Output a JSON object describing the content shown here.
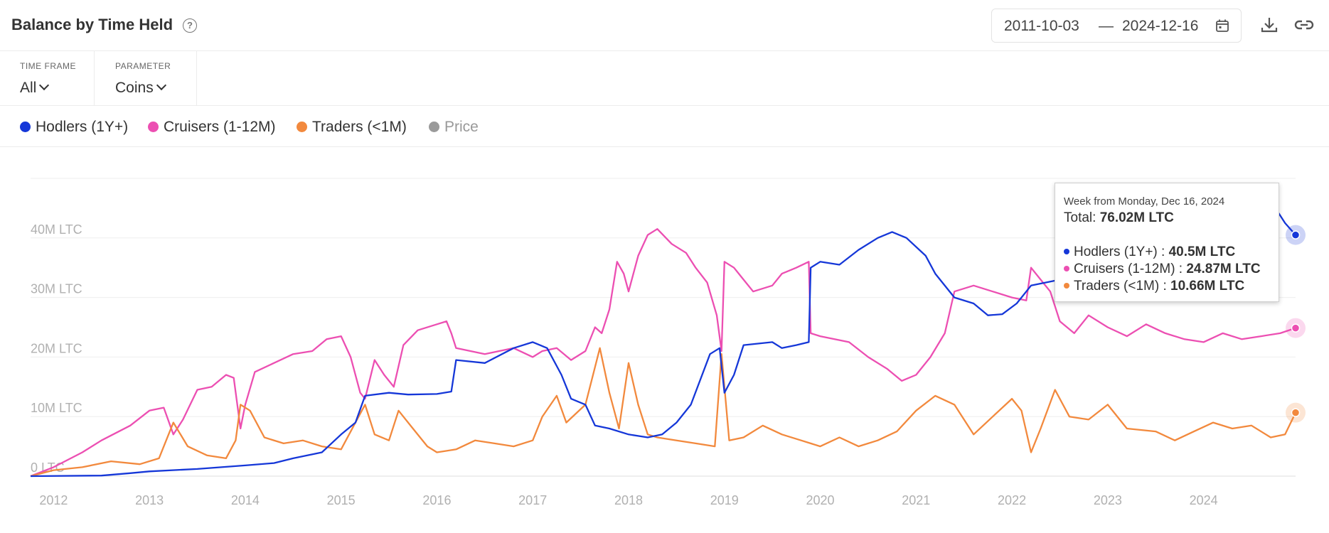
{
  "header": {
    "title": "Balance by Time Held",
    "help_icon": "question-circle-icon"
  },
  "date_range": {
    "start": "2011-10-03",
    "separator": "—",
    "end": "2024-12-16",
    "icon": "calendar-icon"
  },
  "actions": {
    "download_icon": "download-icon",
    "link_icon": "link-icon"
  },
  "controls": {
    "time_frame": {
      "label": "TIME FRAME",
      "value": "All"
    },
    "parameter": {
      "label": "PARAMETER",
      "value": "Coins"
    }
  },
  "legend": [
    {
      "label": "Hodlers (1Y+)",
      "color": "#1537d8",
      "active": true
    },
    {
      "label": "Cruisers (1-12M)",
      "color": "#ec4fb2",
      "active": true
    },
    {
      "label": "Traders (<1M)",
      "color": "#f2893d",
      "active": true
    },
    {
      "label": "Price",
      "color": "#9a9a9a",
      "active": false
    }
  ],
  "tooltip": {
    "week": "Week from Monday, Dec 16, 2024",
    "total_label": "Total: ",
    "total_value": "76.02M LTC",
    "rows": [
      {
        "label": "Hodlers (1Y+) : ",
        "value": "40.5M LTC",
        "color": "#1537d8"
      },
      {
        "label": "Cruisers (1-12M) : ",
        "value": "24.87M LTC",
        "color": "#ec4fb2"
      },
      {
        "label": "Traders (<1M) : ",
        "value": "10.66M LTC",
        "color": "#f2893d"
      }
    ]
  },
  "chart_data": {
    "type": "line",
    "x_unit": "year",
    "xlim": [
      2011.76,
      2024.96
    ],
    "ylim": [
      0,
      50
    ],
    "y_ticks": [
      0,
      10,
      20,
      30,
      40
    ],
    "y_tick_labels": [
      "0 LTC",
      "10M LTC",
      "20M LTC",
      "30M LTC",
      "40M LTC"
    ],
    "x_ticks": [
      2012,
      2013,
      2014,
      2015,
      2016,
      2017,
      2018,
      2019,
      2020,
      2021,
      2022,
      2023,
      2024
    ],
    "x_tick_labels": [
      "2012",
      "2013",
      "2014",
      "2015",
      "2016",
      "2017",
      "2018",
      "2019",
      "2020",
      "2021",
      "2022",
      "2023",
      "2024"
    ],
    "grid": true,
    "series": [
      {
        "name": "Hodlers (1Y+)",
        "color": "#1537d8",
        "points": [
          [
            2011.76,
            0
          ],
          [
            2012.5,
            0.1
          ],
          [
            2012.8,
            0.5
          ],
          [
            2013.0,
            0.8
          ],
          [
            2013.5,
            1.2
          ],
          [
            2014.0,
            1.8
          ],
          [
            2014.3,
            2.2
          ],
          [
            2014.5,
            3.0
          ],
          [
            2014.8,
            4.0
          ],
          [
            2015.0,
            7.0
          ],
          [
            2015.15,
            9.0
          ],
          [
            2015.25,
            13.5
          ],
          [
            2015.5,
            14.0
          ],
          [
            2015.7,
            13.7
          ],
          [
            2016.0,
            13.8
          ],
          [
            2016.15,
            14.2
          ],
          [
            2016.2,
            19.5
          ],
          [
            2016.5,
            19.0
          ],
          [
            2016.8,
            21.5
          ],
          [
            2017.0,
            22.5
          ],
          [
            2017.15,
            21.5
          ],
          [
            2017.3,
            17.0
          ],
          [
            2017.4,
            13.0
          ],
          [
            2017.55,
            12.0
          ],
          [
            2017.65,
            8.5
          ],
          [
            2017.8,
            8.0
          ],
          [
            2018.0,
            7.0
          ],
          [
            2018.2,
            6.5
          ],
          [
            2018.35,
            7.0
          ],
          [
            2018.5,
            9.0
          ],
          [
            2018.65,
            12.0
          ],
          [
            2018.85,
            20.5
          ],
          [
            2018.95,
            21.5
          ],
          [
            2019.0,
            14.0
          ],
          [
            2019.1,
            17.0
          ],
          [
            2019.2,
            22.0
          ],
          [
            2019.5,
            22.5
          ],
          [
            2019.6,
            21.5
          ],
          [
            2019.75,
            22.0
          ],
          [
            2019.88,
            22.5
          ],
          [
            2019.9,
            35.0
          ],
          [
            2020.0,
            36.0
          ],
          [
            2020.2,
            35.5
          ],
          [
            2020.4,
            38.0
          ],
          [
            2020.6,
            40.0
          ],
          [
            2020.75,
            41.0
          ],
          [
            2020.9,
            40.0
          ],
          [
            2021.1,
            37.0
          ],
          [
            2021.2,
            34.0
          ],
          [
            2021.4,
            30.0
          ],
          [
            2021.6,
            29.0
          ],
          [
            2021.75,
            27.0
          ],
          [
            2021.9,
            27.2
          ],
          [
            2022.05,
            29.0
          ],
          [
            2022.2,
            32.0
          ],
          [
            2022.5,
            33.0
          ],
          [
            2022.8,
            35.0
          ],
          [
            2023.0,
            37.0
          ],
          [
            2023.5,
            39.5
          ],
          [
            2024.0,
            42.0
          ],
          [
            2024.5,
            44.0
          ],
          [
            2024.75,
            45.0
          ],
          [
            2024.85,
            42.5
          ],
          [
            2024.96,
            40.5
          ]
        ]
      },
      {
        "name": "Cruisers (1-12M)",
        "color": "#ec4fb2",
        "points": [
          [
            2011.76,
            0
          ],
          [
            2012.0,
            1.5
          ],
          [
            2012.3,
            4.0
          ],
          [
            2012.5,
            6.0
          ],
          [
            2012.8,
            8.5
          ],
          [
            2013.0,
            11.0
          ],
          [
            2013.15,
            11.5
          ],
          [
            2013.25,
            7.0
          ],
          [
            2013.35,
            9.5
          ],
          [
            2013.5,
            14.5
          ],
          [
            2013.65,
            15.0
          ],
          [
            2013.8,
            17.0
          ],
          [
            2013.88,
            16.5
          ],
          [
            2013.95,
            8.0
          ],
          [
            2014.0,
            12.0
          ],
          [
            2014.1,
            17.5
          ],
          [
            2014.3,
            19.0
          ],
          [
            2014.5,
            20.5
          ],
          [
            2014.7,
            21.0
          ],
          [
            2014.85,
            23.0
          ],
          [
            2015.0,
            23.5
          ],
          [
            2015.1,
            20.0
          ],
          [
            2015.2,
            14.0
          ],
          [
            2015.25,
            13.0
          ],
          [
            2015.35,
            19.5
          ],
          [
            2015.45,
            17.0
          ],
          [
            2015.55,
            15.0
          ],
          [
            2015.65,
            22.0
          ],
          [
            2015.8,
            24.5
          ],
          [
            2016.0,
            25.5
          ],
          [
            2016.1,
            26.0
          ],
          [
            2016.15,
            24.0
          ],
          [
            2016.2,
            21.5
          ],
          [
            2016.5,
            20.5
          ],
          [
            2016.8,
            21.5
          ],
          [
            2017.0,
            20.0
          ],
          [
            2017.1,
            21.0
          ],
          [
            2017.25,
            21.5
          ],
          [
            2017.4,
            19.5
          ],
          [
            2017.55,
            21.0
          ],
          [
            2017.65,
            25.0
          ],
          [
            2017.72,
            24.0
          ],
          [
            2017.8,
            28.0
          ],
          [
            2017.88,
            36.0
          ],
          [
            2017.95,
            34.0
          ],
          [
            2018.0,
            31.0
          ],
          [
            2018.1,
            37.0
          ],
          [
            2018.2,
            40.5
          ],
          [
            2018.3,
            41.5
          ],
          [
            2018.45,
            39.0
          ],
          [
            2018.6,
            37.5
          ],
          [
            2018.7,
            35.0
          ],
          [
            2018.82,
            32.5
          ],
          [
            2018.92,
            27.0
          ],
          [
            2018.97,
            21.0
          ],
          [
            2019.0,
            36.0
          ],
          [
            2019.1,
            35.0
          ],
          [
            2019.2,
            33.0
          ],
          [
            2019.3,
            31.0
          ],
          [
            2019.5,
            32.0
          ],
          [
            2019.6,
            34.0
          ],
          [
            2019.75,
            35.0
          ],
          [
            2019.88,
            36.0
          ],
          [
            2019.9,
            24.0
          ],
          [
            2020.0,
            23.5
          ],
          [
            2020.3,
            22.5
          ],
          [
            2020.5,
            20.0
          ],
          [
            2020.7,
            18.0
          ],
          [
            2020.85,
            16.0
          ],
          [
            2021.0,
            17.0
          ],
          [
            2021.15,
            20.0
          ],
          [
            2021.3,
            24.0
          ],
          [
            2021.4,
            31.0
          ],
          [
            2021.6,
            32.0
          ],
          [
            2021.8,
            31.0
          ],
          [
            2022.0,
            30.0
          ],
          [
            2022.15,
            29.5
          ],
          [
            2022.2,
            35.0
          ],
          [
            2022.3,
            33.0
          ],
          [
            2022.4,
            31.0
          ],
          [
            2022.5,
            26.0
          ],
          [
            2022.65,
            24.0
          ],
          [
            2022.8,
            27.0
          ],
          [
            2023.0,
            25.0
          ],
          [
            2023.2,
            23.5
          ],
          [
            2023.4,
            25.5
          ],
          [
            2023.6,
            24.0
          ],
          [
            2023.8,
            23.0
          ],
          [
            2024.0,
            22.5
          ],
          [
            2024.2,
            24.0
          ],
          [
            2024.4,
            23.0
          ],
          [
            2024.6,
            23.5
          ],
          [
            2024.8,
            24.0
          ],
          [
            2024.96,
            24.87
          ]
        ]
      },
      {
        "name": "Traders (<1M)",
        "color": "#f2893d",
        "points": [
          [
            2011.76,
            0
          ],
          [
            2012.0,
            1.0
          ],
          [
            2012.3,
            1.5
          ],
          [
            2012.6,
            2.5
          ],
          [
            2012.9,
            2.0
          ],
          [
            2013.1,
            3.0
          ],
          [
            2013.25,
            9.0
          ],
          [
            2013.4,
            5.0
          ],
          [
            2013.6,
            3.5
          ],
          [
            2013.8,
            3.0
          ],
          [
            2013.9,
            6.0
          ],
          [
            2013.95,
            12.0
          ],
          [
            2014.05,
            11.0
          ],
          [
            2014.2,
            6.5
          ],
          [
            2014.4,
            5.5
          ],
          [
            2014.6,
            6.0
          ],
          [
            2014.8,
            5.0
          ],
          [
            2015.0,
            4.5
          ],
          [
            2015.15,
            9.0
          ],
          [
            2015.25,
            12.0
          ],
          [
            2015.35,
            7.0
          ],
          [
            2015.5,
            6.0
          ],
          [
            2015.6,
            11.0
          ],
          [
            2015.75,
            8.0
          ],
          [
            2015.9,
            5.0
          ],
          [
            2016.0,
            4.0
          ],
          [
            2016.2,
            4.5
          ],
          [
            2016.4,
            6.0
          ],
          [
            2016.6,
            5.5
          ],
          [
            2016.8,
            5.0
          ],
          [
            2017.0,
            6.0
          ],
          [
            2017.1,
            10.0
          ],
          [
            2017.25,
            13.5
          ],
          [
            2017.35,
            9.0
          ],
          [
            2017.55,
            12.0
          ],
          [
            2017.7,
            21.5
          ],
          [
            2017.8,
            14.0
          ],
          [
            2017.9,
            8.0
          ],
          [
            2018.0,
            19.0
          ],
          [
            2018.1,
            12.0
          ],
          [
            2018.2,
            7.0
          ],
          [
            2018.3,
            6.5
          ],
          [
            2018.5,
            6.0
          ],
          [
            2018.7,
            5.5
          ],
          [
            2018.9,
            5.0
          ],
          [
            2018.97,
            20.5
          ],
          [
            2019.05,
            6.0
          ],
          [
            2019.2,
            6.5
          ],
          [
            2019.4,
            8.5
          ],
          [
            2019.6,
            7.0
          ],
          [
            2019.8,
            6.0
          ],
          [
            2020.0,
            5.0
          ],
          [
            2020.2,
            6.5
          ],
          [
            2020.4,
            5.0
          ],
          [
            2020.6,
            6.0
          ],
          [
            2020.8,
            7.5
          ],
          [
            2021.0,
            11.0
          ],
          [
            2021.2,
            13.5
          ],
          [
            2021.4,
            12.0
          ],
          [
            2021.6,
            7.0
          ],
          [
            2021.8,
            10.0
          ],
          [
            2022.0,
            13.0
          ],
          [
            2022.1,
            11.0
          ],
          [
            2022.2,
            4.0
          ],
          [
            2022.3,
            8.0
          ],
          [
            2022.45,
            14.5
          ],
          [
            2022.6,
            10.0
          ],
          [
            2022.8,
            9.5
          ],
          [
            2023.0,
            12.0
          ],
          [
            2023.2,
            8.0
          ],
          [
            2023.5,
            7.5
          ],
          [
            2023.7,
            6.0
          ],
          [
            2023.9,
            7.5
          ],
          [
            2024.1,
            9.0
          ],
          [
            2024.3,
            8.0
          ],
          [
            2024.5,
            8.5
          ],
          [
            2024.7,
            6.5
          ],
          [
            2024.85,
            7.0
          ],
          [
            2024.96,
            10.66
          ]
        ]
      }
    ]
  }
}
